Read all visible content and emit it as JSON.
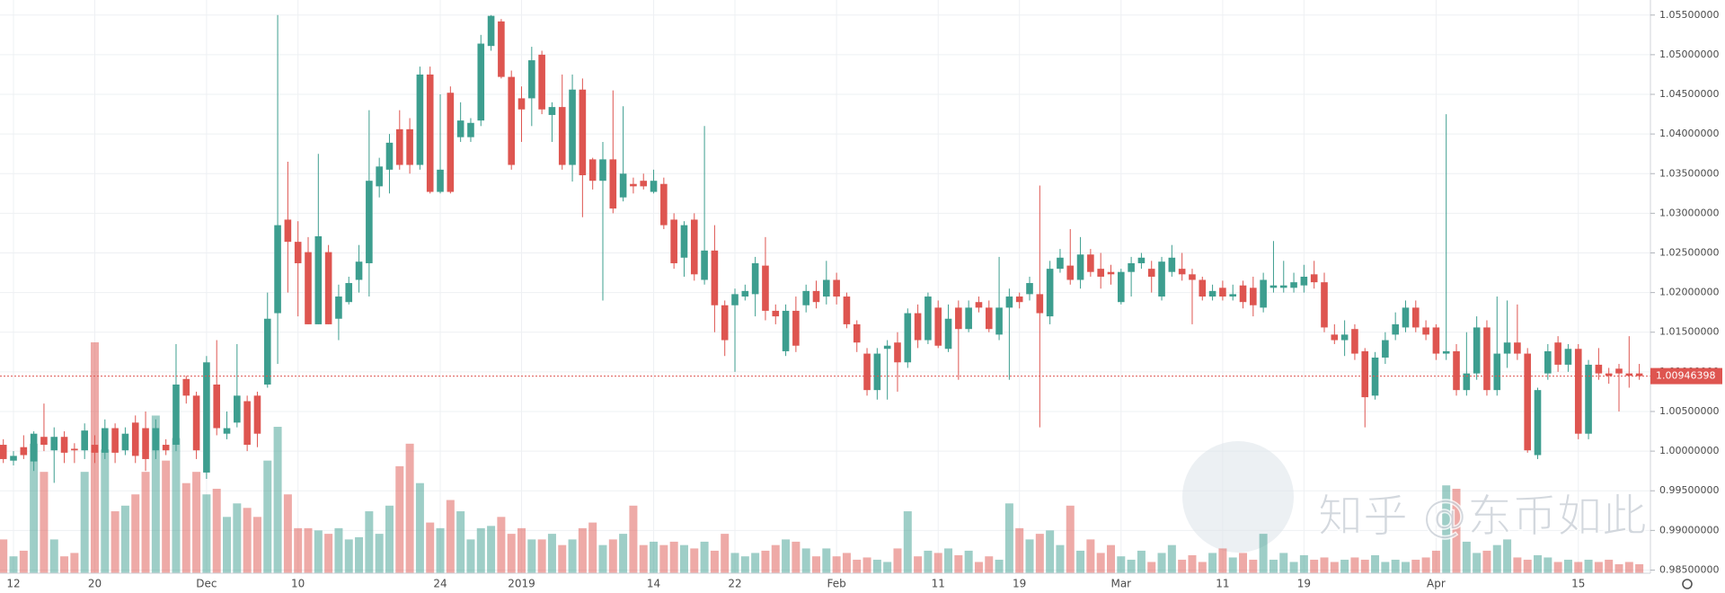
{
  "chart_data": {
    "type": "candlestick",
    "categories": [
      null,
      "12",
      null,
      null,
      null,
      null,
      null,
      null,
      null,
      "20",
      null,
      null,
      null,
      null,
      null,
      null,
      null,
      null,
      null,
      null,
      "Dec",
      null,
      null,
      null,
      null,
      null,
      null,
      null,
      null,
      "10",
      null,
      null,
      null,
      null,
      null,
      null,
      null,
      null,
      null,
      null,
      null,
      null,
      null,
      "24",
      null,
      null,
      null,
      null,
      null,
      null,
      null,
      "2019",
      null,
      null,
      null,
      null,
      null,
      null,
      null,
      null,
      null,
      null,
      null,
      null,
      "14",
      null,
      null,
      null,
      null,
      null,
      null,
      null,
      "22",
      null,
      null,
      null,
      null,
      null,
      null,
      null,
      null,
      null,
      "Feb",
      null,
      null,
      null,
      null,
      null,
      null,
      null,
      null,
      null,
      "11",
      null,
      null,
      null,
      null,
      null,
      null,
      null,
      "19",
      null,
      null,
      null,
      null,
      null,
      null,
      null,
      null,
      null,
      "Mar",
      null,
      null,
      null,
      null,
      null,
      null,
      null,
      null,
      null,
      "11",
      null,
      null,
      null,
      null,
      null,
      null,
      null,
      "19",
      null,
      null,
      null,
      null,
      null,
      null,
      null,
      null,
      null,
      null,
      null,
      null,
      "Apr",
      null,
      null,
      null,
      null,
      null,
      null,
      null,
      null,
      null,
      null,
      null,
      null,
      null,
      "15",
      null,
      null,
      null,
      null,
      null,
      null
    ],
    "open": [
      1.0008,
      0.9988,
      1.0005,
      0.9987,
      1.0018,
      1.0001,
      1.0018,
      1.0003,
      1.0001,
      1.0008,
      0.9998,
      1.0029,
      1.0001,
      1.0036,
      1.0029,
      1.0001,
      1.0008,
      1.0008,
      1.0091,
      1.007,
      0.9973,
      1.0084,
      1.0022,
      1.0036,
      1.0063,
      1.007,
      1.0084,
      1.0174,
      1.0292,
      1.0264,
      1.0251,
      1.016,
      1.0251,
      1.0167,
      1.0188,
      1.0216,
      1.0237,
      1.0334,
      1.0355,
      1.0406,
      1.0406,
      1.0361,
      1.0475,
      1.0327,
      1.0452,
      1.0396,
      1.0396,
      1.0417,
      1.0511,
      1.0542,
      1.0472,
      1.0445,
      1.0445,
      1.05,
      1.0424,
      1.0434,
      1.0361,
      1.0456,
      1.0368,
      1.0341,
      1.0368,
      1.032,
      1.0337,
      1.0341,
      1.0327,
      1.0337,
      1.0292,
      1.0244,
      1.0292,
      1.0216,
      1.0253,
      1.0184,
      1.0184,
      1.0195,
      1.0198,
      1.0234,
      1.0177,
      1.0126,
      1.0177,
      1.0184,
      1.0202,
      1.0195,
      1.0216,
      1.0195,
      1.016,
      1.0123,
      1.0077,
      1.0129,
      1.0137,
      1.0112,
      1.0174,
      1.014,
      1.0181,
      1.0129,
      1.0181,
      1.0154,
      1.0188,
      1.0181,
      1.0147,
      1.0181,
      1.0195,
      1.0198,
      1.0198,
      1.017,
      1.023,
      1.0234,
      1.0216,
      1.0248,
      1.023,
      1.0226,
      1.0188,
      1.0226,
      1.0237,
      1.023,
      1.0195,
      1.0226,
      1.023,
      1.0223,
      1.0216,
      1.0195,
      1.0206,
      1.0195,
      1.0209,
      1.0206,
      1.0181,
      1.0206,
      1.0206,
      1.0206,
      1.0209,
      1.0223,
      1.0213,
      1.0147,
      1.014,
      1.0154,
      1.0126,
      1.007,
      1.0118,
      1.0147,
      1.0156,
      1.0181,
      1.0156,
      1.0156,
      1.0123,
      1.0126,
      1.0077,
      1.0098,
      1.0156,
      1.0077,
      1.0123,
      1.0137,
      1.0123,
      0.9995,
      1.0098,
      1.0137,
      1.0109,
      1.0129,
      1.0022,
      1.0109,
      1.0098,
      1.0104,
      1.0098,
      1.0098
    ],
    "high": [
      1.0015,
      1.0,
      1.002,
      1.0025,
      1.006,
      1.003,
      1.0025,
      1.001,
      1.0035,
      1.002,
      1.004,
      1.0035,
      1.003,
      1.0045,
      1.005,
      1.004,
      1.0015,
      1.0135,
      1.0095,
      1.0075,
      1.012,
      1.014,
      1.005,
      1.0135,
      1.007,
      1.0075,
      1.02,
      1.055,
      1.0365,
      1.029,
      1.027,
      1.0375,
      1.026,
      1.021,
      1.022,
      1.026,
      1.043,
      1.037,
      1.04,
      1.043,
      1.042,
      1.0485,
      1.0485,
      1.045,
      1.046,
      1.044,
      1.042,
      1.0525,
      1.055,
      1.0545,
      1.048,
      1.046,
      1.051,
      1.0505,
      1.044,
      1.0475,
      1.0475,
      1.047,
      1.037,
      1.039,
      1.0455,
      1.0435,
      1.0345,
      1.035,
      1.0355,
      1.0345,
      1.03,
      1.029,
      1.03,
      1.041,
      1.0285,
      1.019,
      1.0205,
      1.021,
      1.0245,
      1.027,
      1.0185,
      1.0185,
      1.0195,
      1.021,
      1.0215,
      1.024,
      1.0225,
      1.02,
      1.0165,
      1.013,
      1.013,
      1.014,
      1.015,
      1.018,
      1.0185,
      1.02,
      1.019,
      1.0185,
      1.019,
      1.019,
      1.0195,
      1.019,
      1.0245,
      1.0205,
      1.02,
      1.022,
      1.0335,
      1.024,
      1.0255,
      1.028,
      1.027,
      1.0255,
      1.025,
      1.0235,
      1.023,
      1.0245,
      1.025,
      1.024,
      1.0245,
      1.026,
      1.025,
      1.023,
      1.022,
      1.021,
      1.0215,
      1.021,
      1.0215,
      1.022,
      1.0225,
      1.0265,
      1.024,
      1.0225,
      1.0235,
      1.024,
      1.0225,
      1.016,
      1.0165,
      1.016,
      1.013,
      1.0125,
      1.015,
      1.0175,
      1.019,
      1.019,
      1.0165,
      1.016,
      1.0425,
      1.0135,
      1.015,
      1.017,
      1.0165,
      1.0195,
      1.019,
      1.0185,
      1.013,
      1.008,
      1.0135,
      1.0145,
      1.0135,
      1.0135,
      1.0115,
      1.013,
      1.0105,
      1.011,
      1.0145,
      1.011
    ],
    "low": [
      0.9985,
      0.9982,
      0.999,
      0.9975,
      1.0,
      0.996,
      0.9985,
      0.9985,
      0.999,
      0.9985,
      0.999,
      0.9985,
      0.9995,
      0.9985,
      0.9975,
      0.999,
      0.9995,
      1.0,
      1.006,
      0.999,
      0.9965,
      1.002,
      1.0015,
      1.003,
      1.0,
      1.0005,
      1.008,
      1.011,
      1.02,
      1.017,
      1.016,
      1.016,
      1.016,
      1.014,
      1.0185,
      1.02,
      1.0195,
      1.032,
      1.0325,
      1.0355,
      1.035,
      1.0355,
      1.0325,
      1.0325,
      1.0325,
      1.039,
      1.039,
      1.041,
      1.0505,
      1.047,
      1.0355,
      1.039,
      1.041,
      1.0425,
      1.039,
      1.0355,
      1.034,
      1.0295,
      1.033,
      1.019,
      1.03,
      1.0315,
      1.0325,
      1.033,
      1.0325,
      1.028,
      1.023,
      1.022,
      1.0215,
      1.021,
      1.015,
      1.012,
      1.01,
      1.019,
      1.017,
      1.0165,
      1.016,
      1.012,
      1.0125,
      1.0175,
      1.018,
      1.0185,
      1.0185,
      1.0155,
      1.0125,
      1.007,
      1.0065,
      1.0065,
      1.0075,
      1.0105,
      1.013,
      1.0135,
      1.013,
      1.0125,
      1.009,
      1.015,
      1.0175,
      1.015,
      1.014,
      1.009,
      1.018,
      1.019,
      1.003,
      1.016,
      1.0225,
      1.021,
      1.0205,
      1.022,
      1.0205,
      1.021,
      1.0185,
      1.0195,
      1.023,
      1.02,
      1.019,
      1.022,
      1.0215,
      1.016,
      1.019,
      1.019,
      1.019,
      1.019,
      1.018,
      1.017,
      1.0175,
      1.02,
      1.02,
      1.02,
      1.02,
      1.0205,
      1.015,
      1.0135,
      1.012,
      1.0115,
      1.003,
      1.0065,
      1.011,
      1.014,
      1.015,
      1.015,
      1.014,
      1.0115,
      1.0115,
      1.007,
      1.007,
      1.009,
      1.007,
      1.007,
      1.0105,
      1.0115,
      0.9998,
      0.999,
      1.009,
      1.01,
      1.01,
      1.0015,
      1.0015,
      1.009,
      1.0085,
      1.005,
      1.008,
      1.009
    ],
    "close": [
      0.999,
      0.9994,
      0.9995,
      1.0022,
      1.0008,
      1.0018,
      0.9998,
      1.0001,
      1.0026,
      0.9998,
      1.0029,
      0.9998,
      1.0022,
      0.9994,
      0.999,
      1.0029,
      1.0001,
      1.0084,
      1.007,
      1.0001,
      1.0112,
      1.0029,
      1.0029,
      1.007,
      1.0008,
      1.0022,
      1.0167,
      1.0285,
      1.0264,
      1.0237,
      1.016,
      1.0271,
      1.016,
      1.0195,
      1.0212,
      1.0239,
      1.0341,
      1.0359,
      1.0389,
      1.0361,
      1.0361,
      1.0475,
      1.0327,
      1.0355,
      1.0327,
      1.0417,
      1.0414,
      1.0514,
      1.0549,
      1.0472,
      1.0361,
      1.0431,
      1.0493,
      1.0431,
      1.0434,
      1.0361,
      1.0456,
      1.0348,
      1.0341,
      1.0368,
      1.0306,
      1.035,
      1.0334,
      1.0334,
      1.0341,
      1.0285,
      1.0237,
      1.0285,
      1.0223,
      1.0253,
      1.0184,
      1.014,
      1.0198,
      1.0202,
      1.0237,
      1.0177,
      1.017,
      1.0177,
      1.0133,
      1.0202,
      1.0188,
      1.0216,
      1.0195,
      1.016,
      1.0137,
      1.0077,
      1.0123,
      1.0133,
      1.0112,
      1.0174,
      1.014,
      1.0195,
      1.0133,
      1.0167,
      1.0154,
      1.0181,
      1.0181,
      1.0154,
      1.0181,
      1.0195,
      1.0188,
      1.0212,
      1.0174,
      1.023,
      1.0244,
      1.0216,
      1.0248,
      1.0226,
      1.022,
      1.0223,
      1.0226,
      1.0237,
      1.0244,
      1.022,
      1.0239,
      1.0244,
      1.0223,
      1.0216,
      1.0195,
      1.0202,
      1.0195,
      1.0198,
      1.0188,
      1.0184,
      1.0216,
      1.0209,
      1.0209,
      1.0213,
      1.022,
      1.0213,
      1.0156,
      1.014,
      1.0147,
      1.0123,
      1.0068,
      1.0118,
      1.014,
      1.016,
      1.0181,
      1.0156,
      1.0147,
      1.0123,
      1.0126,
      1.0077,
      1.0098,
      1.0156,
      1.0077,
      1.0123,
      1.0137,
      1.0123,
      1.0001,
      1.0077,
      1.0126,
      1.0109,
      1.0129,
      1.0022,
      1.0109,
      1.0098,
      1.0095,
      1.0098,
      1.0095,
      1.00946398
    ],
    "volume": [
      30,
      15,
      20,
      115,
      90,
      30,
      15,
      18,
      90,
      205,
      110,
      55,
      60,
      70,
      90,
      140,
      100,
      120,
      80,
      90,
      70,
      75,
      50,
      62,
      58,
      50,
      100,
      130,
      70,
      40,
      40,
      38,
      35,
      40,
      30,
      32,
      55,
      35,
      60,
      95,
      115,
      80,
      45,
      40,
      65,
      55,
      30,
      40,
      42,
      50,
      35,
      40,
      30,
      30,
      35,
      25,
      30,
      40,
      45,
      25,
      30,
      35,
      60,
      25,
      28,
      25,
      28,
      25,
      22,
      28,
      20,
      35,
      18,
      15,
      18,
      20,
      25,
      30,
      28,
      22,
      15,
      22,
      15,
      18,
      12,
      14,
      12,
      10,
      22,
      55,
      15,
      20,
      18,
      22,
      16,
      20,
      10,
      15,
      12,
      62,
      40,
      30,
      35,
      38,
      25,
      60,
      20,
      30,
      18,
      25,
      15,
      12,
      20,
      10,
      18,
      25,
      12,
      16,
      10,
      18,
      22,
      14,
      18,
      12,
      35,
      12,
      18,
      10,
      16,
      12,
      14,
      10,
      12,
      14,
      12,
      16,
      10,
      12,
      10,
      12,
      14,
      20,
      78,
      75,
      28,
      18,
      20,
      25,
      30,
      14,
      12,
      16,
      14,
      10,
      12,
      10,
      12,
      10,
      12,
      8,
      10,
      8
    ],
    "ylim": [
      0.9846,
      1.0569
    ],
    "yticks": [
      {
        "value": 0.985,
        "label": "0.98500000"
      },
      {
        "value": 0.99,
        "label": "0.99000000"
      },
      {
        "value": 0.995,
        "label": "0.99500000"
      },
      {
        "value": 1.0,
        "label": "1.00000000"
      },
      {
        "value": 1.005,
        "label": "1.00500000"
      },
      {
        "value": 1.01,
        "label": "1.01000000"
      },
      {
        "value": 1.015,
        "label": "1.01500000"
      },
      {
        "value": 1.02,
        "label": "1.02000000"
      },
      {
        "value": 1.025,
        "label": "1.02500000"
      },
      {
        "value": 1.03,
        "label": "1.03000000"
      },
      {
        "value": 1.035,
        "label": "1.03500000"
      },
      {
        "value": 1.04,
        "label": "1.04000000"
      },
      {
        "value": 1.045,
        "label": "1.04500000"
      },
      {
        "value": 1.05,
        "label": "1.05000000"
      },
      {
        "value": 1.055,
        "label": "1.05500000"
      }
    ],
    "last_price": 1.00946398,
    "up_color": "#3d9e8f",
    "down_color": "#de5550",
    "grid": true,
    "watermark": "知乎 @东币如此"
  }
}
